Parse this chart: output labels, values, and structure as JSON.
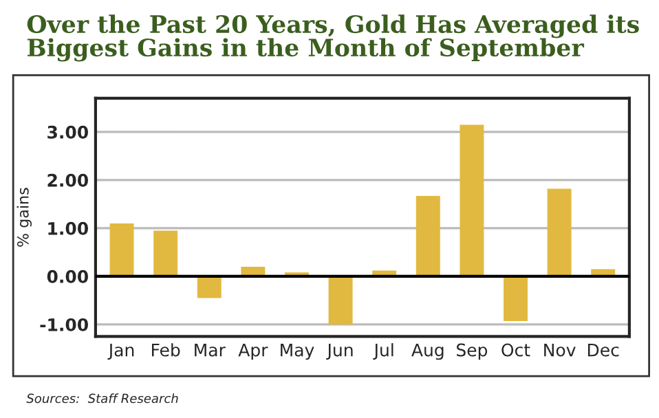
{
  "chart_data": {
    "type": "bar",
    "title": "Over the Past 20 Years, Gold Has Averaged its\nBiggest Gains in the Month of September",
    "ylabel": "% gains",
    "categories": [
      "Jan",
      "Feb",
      "Mar",
      "Apr",
      "May",
      "Jun",
      "Jul",
      "Aug",
      "Sep",
      "Oct",
      "Nov",
      "Dec"
    ],
    "values": [
      1.1,
      0.95,
      -0.45,
      0.2,
      0.08,
      -1.0,
      0.12,
      1.67,
      3.15,
      -0.93,
      1.82,
      0.15
    ],
    "color": "#e2b940",
    "ylim": [
      -1.25,
      3.7
    ],
    "yticks": [
      {
        "value": -1,
        "label": "-1.00"
      },
      {
        "value": 0,
        "label": "0.00"
      },
      {
        "value": 1,
        "label": "1.00"
      },
      {
        "value": 2,
        "label": "2.00"
      },
      {
        "value": 3,
        "label": "3.00"
      }
    ],
    "grid": "y",
    "ref_lines": [
      {
        "axis": "y",
        "value": 0,
        "label": null,
        "color": "#000000"
      }
    ],
    "annotations": [
      "Sources:  Staff Research"
    ]
  }
}
